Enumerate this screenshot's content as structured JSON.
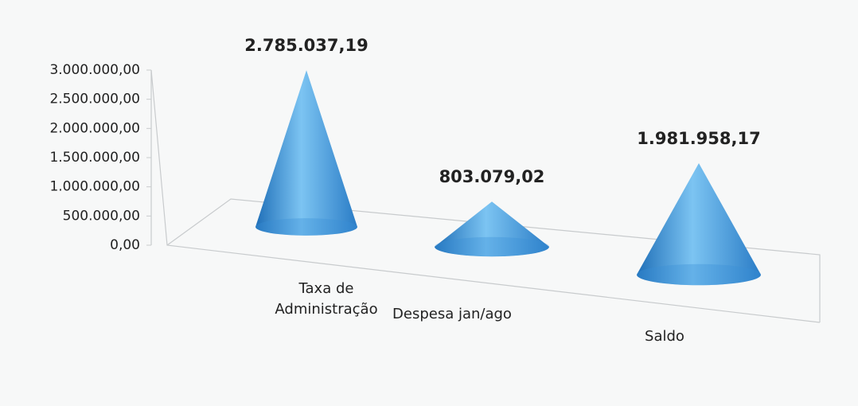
{
  "chart_data": {
    "type": "cone",
    "categories": [
      "Taxa de Administração",
      "Despesa jan/ago",
      "Saldo"
    ],
    "values": [
      2785037.19,
      803079.02,
      1981958.17
    ],
    "value_labels": [
      "2.785.037,19",
      "803.079,02",
      "1.981.958,17"
    ],
    "color": "#3a8fd6",
    "ylim": [
      0,
      3000000
    ],
    "yticks": [
      {
        "value": 0,
        "label": "0,00"
      },
      {
        "value": 500000,
        "label": "500.000,00"
      },
      {
        "value": 1000000,
        "label": "1.000.000,00"
      },
      {
        "value": 1500000,
        "label": "1.500.000,00"
      },
      {
        "value": 2000000,
        "label": "2.000.000,00"
      },
      {
        "value": 2500000,
        "label": "2.500.000,00"
      },
      {
        "value": 3000000,
        "label": "3.000.000,00"
      }
    ]
  }
}
